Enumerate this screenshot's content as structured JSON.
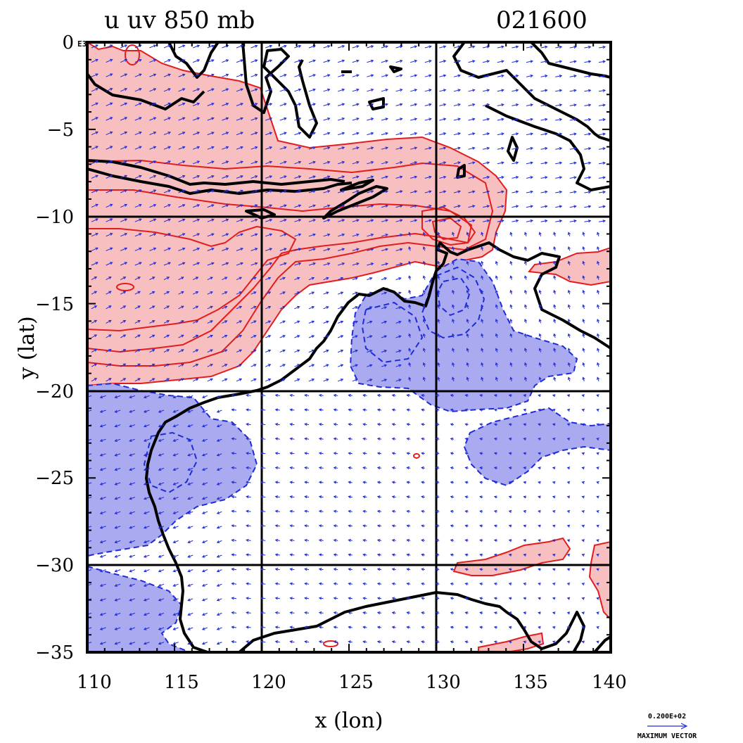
{
  "header": {
    "title_left": "u  uv  850  mb",
    "title_right": "021600"
  },
  "axes": {
    "x_label": "x (lon)",
    "y_label": "y (lat)",
    "x_ticks": [
      "110",
      "115",
      "120",
      "125",
      "130",
      "135",
      "140"
    ],
    "y_ticks": [
      "0",
      "−5",
      "−10",
      "−15",
      "−20",
      "−25",
      "−30",
      "−35"
    ],
    "y_zero_suffix": "E3"
  },
  "vector_legend": {
    "value": "0.200E+02",
    "caption": "MAXIMUM VECTOR"
  },
  "colors": {
    "positive_fill": "#f7bfc0",
    "positive_line": "#e21d1d",
    "negative_fill": "#a9aaf0",
    "negative_line": "#1f2bd6",
    "vector": "#1f2bd6",
    "coast": "#000000"
  },
  "chart_data": {
    "type": "map",
    "variable": "u",
    "overlay": "uv",
    "level": "850 mb",
    "time": "021600",
    "xlim": [
      110,
      140
    ],
    "ylim": [
      -35,
      0
    ],
    "grid_lon": [
      120,
      130
    ],
    "grid_lat": [
      -10,
      -20,
      -30
    ],
    "positive_regions": [
      {
        "region": "northern band",
        "lon_range": [
          110,
          139
        ],
        "lat_range": [
          -19.5,
          -0.5
        ]
      },
      {
        "region": "east coast",
        "lon_range": [
          135,
          140
        ],
        "lat_range": [
          -14,
          -12
        ]
      },
      {
        "region": "south",
        "lon_range": [
          131,
          140
        ],
        "lat_range": [
          -35,
          -29
        ]
      }
    ],
    "negative_regions": [
      {
        "region": "west coast",
        "lon_range": [
          110,
          120
        ],
        "lat_range": [
          -35,
          -20
        ]
      },
      {
        "region": "central north",
        "lon_range": [
          125,
          138
        ],
        "lat_range": [
          -27,
          -12
        ]
      }
    ]
  }
}
